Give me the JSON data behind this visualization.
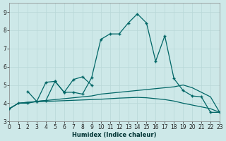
{
  "xlabel": "Humidex (Indice chaleur)",
  "bg_color": "#cde8e8",
  "grid_color": "#b8d8d8",
  "line_color": "#006666",
  "xlim": [
    0,
    23
  ],
  "ylim": [
    3.0,
    9.5
  ],
  "x_ticks": [
    0,
    1,
    2,
    3,
    4,
    5,
    6,
    7,
    8,
    9,
    10,
    11,
    12,
    13,
    14,
    15,
    16,
    17,
    18,
    19,
    20,
    21,
    22,
    23
  ],
  "y_ticks": [
    3,
    4,
    5,
    6,
    7,
    8,
    9
  ],
  "line_main": {
    "x": [
      0,
      1,
      2,
      3,
      4,
      5,
      6,
      7,
      8,
      9,
      10,
      11,
      12,
      13,
      14,
      15,
      16,
      17,
      18,
      19,
      20,
      21,
      22,
      23
    ],
    "y": [
      3.7,
      4.0,
      4.0,
      4.1,
      4.15,
      5.2,
      4.6,
      4.6,
      4.5,
      5.4,
      7.5,
      7.8,
      7.8,
      8.4,
      8.9,
      8.4,
      6.3,
      7.7,
      5.35,
      4.7,
      4.4,
      4.35,
      3.5,
      3.5
    ]
  },
  "line_short": {
    "x": [
      2,
      3,
      4,
      5,
      6,
      7,
      8,
      9
    ],
    "y": [
      4.65,
      4.1,
      5.15,
      5.2,
      4.6,
      5.3,
      5.45,
      5.0
    ]
  },
  "line_rise": {
    "x": [
      0,
      1,
      2,
      3,
      4,
      5,
      6,
      7,
      8,
      9,
      10,
      11,
      12,
      13,
      14,
      15,
      16,
      17,
      18,
      19,
      20,
      21,
      22,
      23
    ],
    "y": [
      3.7,
      4.0,
      4.05,
      4.1,
      4.15,
      4.2,
      4.25,
      4.3,
      4.35,
      4.4,
      4.5,
      4.55,
      4.6,
      4.65,
      4.7,
      4.75,
      4.8,
      4.85,
      4.9,
      5.0,
      4.85,
      4.6,
      4.35,
      3.5
    ]
  },
  "line_flat": {
    "x": [
      0,
      1,
      2,
      3,
      4,
      5,
      6,
      7,
      8,
      9,
      10,
      11,
      12,
      13,
      14,
      15,
      16,
      17,
      18,
      19,
      20,
      21,
      22,
      23
    ],
    "y": [
      3.7,
      4.0,
      4.05,
      4.08,
      4.1,
      4.12,
      4.14,
      4.16,
      4.18,
      4.2,
      4.22,
      4.25,
      4.28,
      4.3,
      4.32,
      4.3,
      4.25,
      4.2,
      4.12,
      4.0,
      3.9,
      3.8,
      3.7,
      3.5
    ]
  }
}
